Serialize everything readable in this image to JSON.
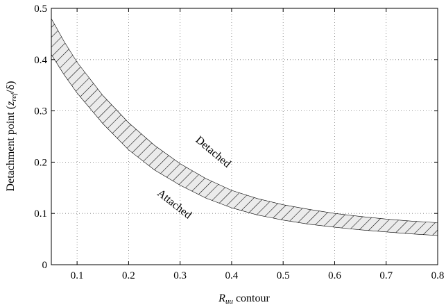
{
  "chart_data": {
    "type": "area",
    "title": "",
    "xlabel": {
      "main": "R",
      "sub": "uu",
      "rest": " contour"
    },
    "ylabel": {
      "pre": "Detachment point (",
      "var": "z",
      "sub": "ref",
      "post": "/δ)"
    },
    "xlim": [
      0.05,
      0.8
    ],
    "ylim": [
      0,
      0.5
    ],
    "xticks": [
      0.1,
      0.2,
      0.3,
      0.4,
      0.5,
      0.6,
      0.7,
      0.8
    ],
    "yticks": [
      0,
      0.1,
      0.2,
      0.3,
      0.4,
      0.5
    ],
    "xtick_labels": [
      "0.1",
      "0.2",
      "0.3",
      "0.4",
      "0.5",
      "0.6",
      "0.7",
      "0.8"
    ],
    "ytick_labels": [
      "0",
      "0.1",
      "0.2",
      "0.3",
      "0.4",
      "0.5"
    ],
    "grid": true,
    "band": {
      "fill": "hatched",
      "x": [
        0.05,
        0.075,
        0.1,
        0.15,
        0.2,
        0.25,
        0.3,
        0.35,
        0.4,
        0.45,
        0.5,
        0.55,
        0.6,
        0.65,
        0.7,
        0.75,
        0.8
      ],
      "upper": [
        0.48,
        0.435,
        0.395,
        0.33,
        0.277,
        0.233,
        0.197,
        0.168,
        0.145,
        0.129,
        0.117,
        0.108,
        0.1,
        0.094,
        0.089,
        0.085,
        0.082
      ],
      "lower": [
        0.41,
        0.37,
        0.335,
        0.275,
        0.224,
        0.185,
        0.155,
        0.13,
        0.111,
        0.097,
        0.087,
        0.079,
        0.073,
        0.068,
        0.064,
        0.06,
        0.057
      ]
    },
    "annotations": [
      {
        "text": "Detached",
        "x": 0.36,
        "y": 0.215,
        "rotation": 40
      },
      {
        "text": "Attached",
        "x": 0.285,
        "y": 0.113,
        "rotation": 38
      }
    ]
  }
}
